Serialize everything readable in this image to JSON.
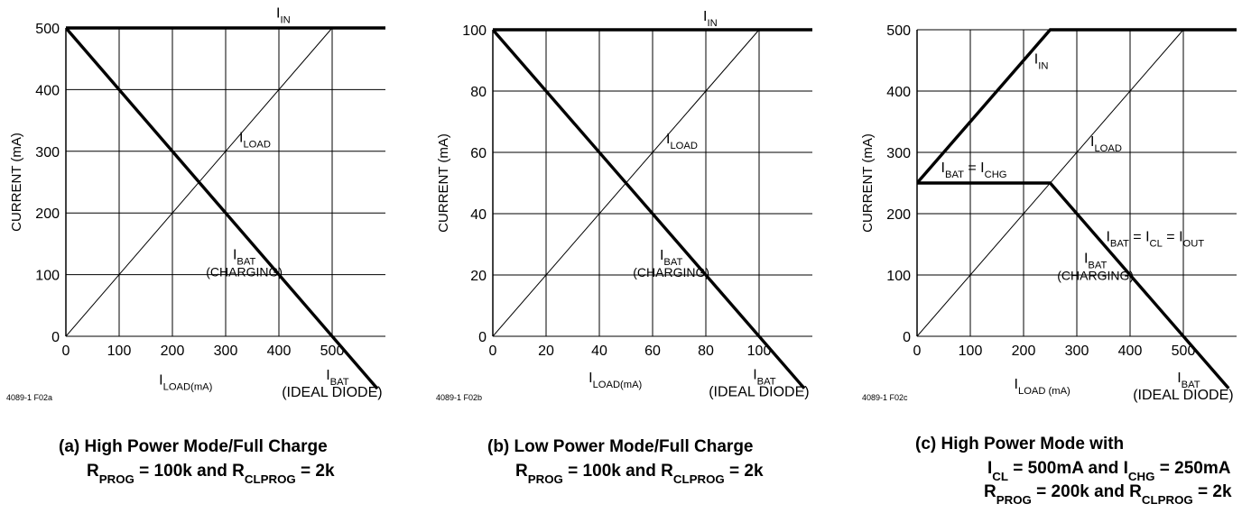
{
  "chart_data": [
    {
      "type": "line",
      "ylabel": "CURRENT (mA)",
      "xlabel": "I_LOAD(mA)",
      "xlim": [
        0,
        600
      ],
      "ylim": [
        0,
        500
      ],
      "x_ticks": [
        "0",
        "100",
        "200",
        "300",
        "400",
        "500"
      ],
      "y_ticks": [
        "0",
        "100",
        "200",
        "300",
        "400",
        "500"
      ],
      "grid": true,
      "series": [
        {
          "name": "IIN",
          "points": [
            [
              0,
              500
            ],
            [
              600,
              500
            ]
          ]
        },
        {
          "name": "ILOAD",
          "points": [
            [
              0,
              0
            ],
            [
              500,
              500
            ]
          ]
        },
        {
          "name": "IBAT",
          "points": [
            [
              0,
              500
            ],
            [
              585,
              -85
            ]
          ]
        }
      ],
      "labels": {
        "iin_main": "I",
        "iin_sub": "IN",
        "iload_main": "I",
        "iload_sub": "LOAD",
        "ibat_main": "I",
        "ibat_sub": "BAT",
        "ibat_note": "(CHARGING)",
        "ibat2_main": "I",
        "ibat2_sub": "BAT",
        "ibat2_note": "(IDEAL DIODE)",
        "x_main": "I",
        "x_sub": "LOAD(mA)"
      },
      "code": "4089-1 F02a",
      "caption": {
        "line1": "(a) High Power Mode/Full Charge",
        "line2": [
          {
            "t": "R"
          },
          {
            "t": "PROG",
            "sub": true
          },
          {
            "t": " = 100k and R"
          },
          {
            "t": "CLPROG",
            "sub": true
          },
          {
            "t": " = 2k"
          }
        ]
      }
    },
    {
      "type": "line",
      "ylabel": "CURRENT (mA)",
      "xlabel": "I_LOAD(mA)",
      "xlim": [
        0,
        120
      ],
      "ylim": [
        0,
        100
      ],
      "x_ticks": [
        "0",
        "20",
        "40",
        "60",
        "80",
        "100"
      ],
      "y_ticks": [
        "0",
        "20",
        "40",
        "60",
        "80",
        "100"
      ],
      "grid": true,
      "series": [
        {
          "name": "IIN",
          "points": [
            [
              0,
              100
            ],
            [
              120,
              100
            ]
          ]
        },
        {
          "name": "ILOAD",
          "points": [
            [
              0,
              0
            ],
            [
              100,
              100
            ]
          ]
        },
        {
          "name": "IBAT",
          "points": [
            [
              0,
              100
            ],
            [
              117,
              -17
            ]
          ]
        }
      ],
      "labels": {
        "iin_main": "I",
        "iin_sub": "IN",
        "iload_main": "I",
        "iload_sub": "LOAD",
        "ibat_main": "I",
        "ibat_sub": "BAT",
        "ibat_note": "(CHARGING)",
        "ibat2_main": "I",
        "ibat2_sub": "BAT",
        "ibat2_note": "(IDEAL DIODE)",
        "x_main": "I",
        "x_sub": "LOAD(mA)"
      },
      "code": "4089-1 F02b",
      "caption": {
        "line1": "(b) Low Power Mode/Full Charge",
        "line2": [
          {
            "t": "R"
          },
          {
            "t": "PROG",
            "sub": true
          },
          {
            "t": " = 100k and R"
          },
          {
            "t": "CLPROG",
            "sub": true
          },
          {
            "t": " = 2k"
          }
        ]
      }
    },
    {
      "type": "line",
      "ylabel": "CURRENT (mA)",
      "xlabel": "I_LOAD (mA)",
      "xlim": [
        0,
        600
      ],
      "ylim": [
        0,
        500
      ],
      "x_ticks": [
        "0",
        "100",
        "200",
        "300",
        "400",
        "500"
      ],
      "y_ticks": [
        "0",
        "100",
        "200",
        "300",
        "400",
        "500"
      ],
      "grid": true,
      "series": [
        {
          "name": "IIN",
          "points": [
            [
              0,
              250
            ],
            [
              250,
              500
            ],
            [
              600,
              500
            ]
          ]
        },
        {
          "name": "ILOAD",
          "points": [
            [
              0,
              0
            ],
            [
              500,
              500
            ]
          ]
        },
        {
          "name": "IBAT",
          "points": [
            [
              0,
              250
            ],
            [
              250,
              250
            ],
            [
              585,
              -85
            ]
          ]
        }
      ],
      "labels": {
        "iin_main": "I",
        "iin_sub": "IN",
        "iload_main": "I",
        "iload_sub": "LOAD",
        "ibat_main": "I",
        "ibat_sub": "BAT",
        "ibat_note": "(CHARGING)",
        "ibat2_main": "I",
        "ibat2_sub": "BAT",
        "ibat2_note": "(IDEAL DIODE)",
        "x_main": "I",
        "x_sub": "LOAD (mA)",
        "chg_parts": [
          {
            "t": "I"
          },
          {
            "t": "BAT",
            "sub": true
          },
          {
            "t": " = I"
          },
          {
            "t": "CHG",
            "sub": true
          }
        ],
        "cl_parts": [
          {
            "t": "I"
          },
          {
            "t": "BAT",
            "sub": true
          },
          {
            "t": " = I"
          },
          {
            "t": "CL",
            "sub": true
          },
          {
            "t": " = I"
          },
          {
            "t": "OUT",
            "sub": true
          }
        ]
      },
      "code": "4089-1 F02c",
      "caption": {
        "line1": "(c) High Power Mode with",
        "line2": [
          {
            "t": "I"
          },
          {
            "t": "CL",
            "sub": true
          },
          {
            "t": " = 500mA and I"
          },
          {
            "t": "CHG",
            "sub": true
          },
          {
            "t": " = 250mA"
          }
        ],
        "line3": [
          {
            "t": "R"
          },
          {
            "t": "PROG",
            "sub": true
          },
          {
            "t": " = 200k and R"
          },
          {
            "t": "CLPROG",
            "sub": true
          },
          {
            "t": " = 2k"
          }
        ]
      }
    }
  ]
}
